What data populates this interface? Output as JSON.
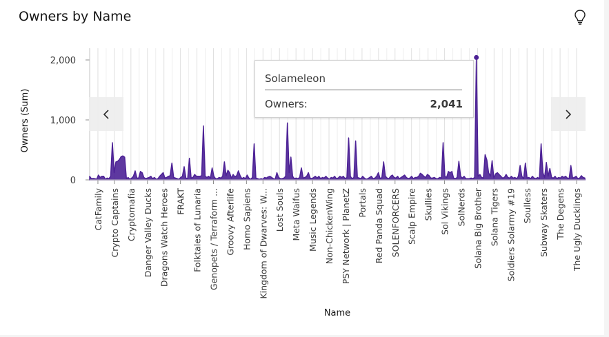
{
  "widget": {
    "title": "Owners by Name",
    "icons": {
      "insight": "lightbulb-icon",
      "prev": "chevron-left-icon",
      "next": "chevron-right-icon"
    }
  },
  "tooltip": {
    "name": "Solameleon",
    "label": "Owners:",
    "value": "2,041"
  },
  "chart_data": {
    "type": "area",
    "title": "Owners by Name",
    "xlabel": "Name",
    "ylabel": "Owners (Sum)",
    "ylim": [
      0,
      2000
    ],
    "yticks": [
      0,
      1000,
      2000
    ],
    "ytick_labels": [
      "0",
      "1,000",
      "2,000"
    ],
    "grid": true,
    "color": "#4d2296",
    "x_labels": [
      "CatFamily",
      "Crypto Captains",
      "Cryptomafia",
      "Danger Valley Ducks",
      "Dragons Watch Heroes",
      "FRAKT",
      "Folktales of Lunaria",
      "Genopets / Terraform ...",
      "Groovy Afterlife",
      "Homo Sapiens",
      "Kingdom of Dwarves: W...",
      "Lost Souls",
      "Meta Waifus",
      "Music Legends",
      "Non-ChickenWing",
      "PSY Network | PlanetZ",
      "Portals",
      "Red Panda Squad",
      "SOLENFORCERS",
      "Scalp Empire",
      "Skullies",
      "Sol Vikings",
      "SolNerds",
      "Solana Big Brother",
      "Solana Tigers",
      "Soldiers Solarmy #19",
      "Soulless",
      "Subway Skaters",
      "The Degens",
      "The Ugly Ducklings"
    ],
    "values": [
      60,
      20,
      25,
      20,
      10,
      80,
      40,
      60,
      60,
      10,
      30,
      20,
      60,
      620,
      120,
      300,
      310,
      340,
      390,
      400,
      380,
      20,
      40,
      10,
      30,
      60,
      150,
      30,
      30,
      140,
      120,
      40,
      20,
      30,
      40,
      60,
      20,
      40,
      10,
      20,
      60,
      90,
      120,
      30,
      40,
      60,
      70,
      280,
      40,
      30,
      20,
      10,
      40,
      60,
      220,
      30,
      20,
      360,
      30,
      40,
      90,
      60,
      60,
      60,
      70,
      900,
      60,
      40,
      60,
      30,
      200,
      60,
      20,
      20,
      40,
      30,
      60,
      300,
      70,
      160,
      120,
      30,
      90,
      50,
      70,
      150,
      70,
      20,
      40,
      20,
      80,
      30,
      10,
      40,
      600,
      30,
      20,
      10,
      20,
      10,
      40,
      30,
      50,
      60,
      40,
      20,
      10,
      120,
      40,
      20,
      20,
      30,
      60,
      950,
      120,
      380,
      60,
      20,
      30,
      20,
      40,
      200,
      30,
      40,
      60,
      120,
      30,
      20,
      40,
      60,
      30,
      60,
      20,
      40,
      30,
      60,
      30,
      10,
      40,
      30,
      60,
      20,
      30,
      60,
      40,
      60,
      20,
      40,
      700,
      60,
      20,
      40,
      650,
      40,
      30,
      20,
      60,
      30,
      10,
      20,
      40,
      60,
      20,
      30,
      60,
      120,
      20,
      40,
      300,
      60,
      30,
      20,
      60,
      80,
      40,
      30,
      60,
      20,
      40,
      60,
      80,
      40,
      20,
      30,
      60,
      20,
      40,
      40,
      60,
      110,
      90,
      60,
      40,
      90,
      70,
      30,
      30,
      40,
      20,
      20,
      40,
      30,
      620,
      60,
      40,
      140,
      120,
      140,
      30,
      20,
      40,
      310,
      60,
      30,
      60,
      20,
      20,
      20,
      30,
      20,
      40,
      2041,
      60,
      90,
      40,
      30,
      420,
      330,
      120,
      60,
      320,
      30,
      100,
      120,
      90,
      60,
      30,
      40,
      90,
      40,
      30,
      60,
      30,
      40,
      20,
      60,
      240,
      60,
      20,
      280,
      30,
      40,
      20,
      60,
      30,
      20,
      40,
      20,
      600,
      120,
      40,
      290,
      60,
      190,
      40,
      30,
      60,
      20,
      40,
      30,
      60,
      40,
      60,
      30,
      20,
      240,
      30,
      40,
      60,
      20,
      30,
      70,
      40,
      30
    ]
  }
}
